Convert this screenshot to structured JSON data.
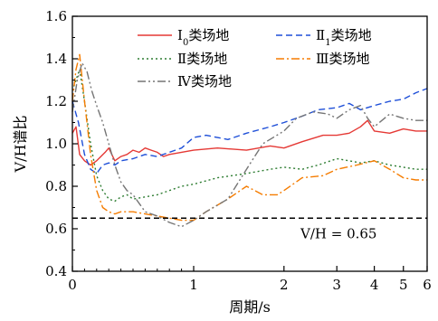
{
  "chart_data": {
    "type": "line",
    "xlabel": "周期/s",
    "ylabel": "V/H谱比",
    "xscale": "piecewise: linear 0-1, log 1-6",
    "xlim": [
      0,
      6
    ],
    "ylim": [
      0.4,
      1.6
    ],
    "x_ticks": [
      {
        "v": 0,
        "label": "0"
      },
      {
        "v": 1,
        "label": "1"
      },
      {
        "v": 2,
        "label": "2"
      },
      {
        "v": 3,
        "label": "3"
      },
      {
        "v": 4,
        "label": "4"
      },
      {
        "v": 5,
        "label": "5"
      },
      {
        "v": 6,
        "label": "6"
      }
    ],
    "y_ticks": [
      {
        "v": 0.4,
        "label": "0.4"
      },
      {
        "v": 0.6,
        "label": "0.6"
      },
      {
        "v": 0.8,
        "label": "0.8"
      },
      {
        "v": 1.0,
        "label": "1.0"
      },
      {
        "v": 1.2,
        "label": "1.2"
      },
      {
        "v": 1.4,
        "label": "1.4"
      },
      {
        "v": 1.6,
        "label": "1.6"
      }
    ],
    "reference_line": {
      "y": 0.65,
      "label": "V/H = 0.65",
      "color": "#000000"
    },
    "legend_position": "top",
    "series": [
      {
        "name": "Ⅰ0类场地",
        "legend_main": "Ⅰ",
        "legend_sub": "0",
        "legend_rest": "类场地",
        "color": "#e53935",
        "dash": "",
        "points": [
          [
            0.0,
            1.05
          ],
          [
            0.03,
            1.08
          ],
          [
            0.06,
            0.95
          ],
          [
            0.1,
            0.92
          ],
          [
            0.15,
            0.9
          ],
          [
            0.2,
            0.92
          ],
          [
            0.27,
            0.96
          ],
          [
            0.3,
            0.98
          ],
          [
            0.35,
            0.92
          ],
          [
            0.4,
            0.94
          ],
          [
            0.45,
            0.95
          ],
          [
            0.5,
            0.97
          ],
          [
            0.55,
            0.96
          ],
          [
            0.6,
            0.98
          ],
          [
            0.65,
            0.97
          ],
          [
            0.7,
            0.96
          ],
          [
            0.75,
            0.94
          ],
          [
            0.8,
            0.95
          ],
          [
            0.9,
            0.96
          ],
          [
            1.0,
            0.97
          ],
          [
            1.2,
            0.98
          ],
          [
            1.5,
            0.97
          ],
          [
            1.8,
            0.99
          ],
          [
            2.0,
            0.98
          ],
          [
            2.3,
            1.01
          ],
          [
            2.7,
            1.04
          ],
          [
            3.0,
            1.04
          ],
          [
            3.3,
            1.05
          ],
          [
            3.6,
            1.08
          ],
          [
            3.8,
            1.11
          ],
          [
            4.0,
            1.06
          ],
          [
            4.5,
            1.05
          ],
          [
            5.0,
            1.07
          ],
          [
            5.5,
            1.06
          ],
          [
            6.0,
            1.06
          ]
        ]
      },
      {
        "name": "Ⅱ1类场地",
        "legend_main": "Ⅱ",
        "legend_sub": "1",
        "legend_rest": "类场地",
        "color": "#1e4fd8",
        "dash": "7,4",
        "points": [
          [
            0.0,
            1.2
          ],
          [
            0.05,
            1.1
          ],
          [
            0.1,
            0.95
          ],
          [
            0.15,
            0.88
          ],
          [
            0.2,
            0.86
          ],
          [
            0.25,
            0.9
          ],
          [
            0.3,
            0.91
          ],
          [
            0.35,
            0.9
          ],
          [
            0.4,
            0.92
          ],
          [
            0.5,
            0.93
          ],
          [
            0.6,
            0.95
          ],
          [
            0.7,
            0.94
          ],
          [
            0.8,
            0.96
          ],
          [
            0.9,
            0.98
          ],
          [
            1.0,
            1.03
          ],
          [
            1.1,
            1.04
          ],
          [
            1.3,
            1.02
          ],
          [
            1.5,
            1.05
          ],
          [
            1.8,
            1.08
          ],
          [
            2.0,
            1.1
          ],
          [
            2.3,
            1.13
          ],
          [
            2.6,
            1.16
          ],
          [
            3.0,
            1.17
          ],
          [
            3.3,
            1.19
          ],
          [
            3.6,
            1.16
          ],
          [
            4.0,
            1.18
          ],
          [
            4.5,
            1.2
          ],
          [
            5.0,
            1.21
          ],
          [
            5.5,
            1.24
          ],
          [
            6.0,
            1.26
          ]
        ]
      },
      {
        "name": "Ⅱ类场地",
        "legend_main": "Ⅱ",
        "legend_sub": "",
        "legend_rest": "类场地",
        "color": "#2e7d32",
        "dash": "2,3",
        "points": [
          [
            0.0,
            1.25
          ],
          [
            0.03,
            1.3
          ],
          [
            0.06,
            1.35
          ],
          [
            0.1,
            1.2
          ],
          [
            0.15,
            1.0
          ],
          [
            0.2,
            0.85
          ],
          [
            0.25,
            0.78
          ],
          [
            0.3,
            0.74
          ],
          [
            0.35,
            0.73
          ],
          [
            0.4,
            0.75
          ],
          [
            0.45,
            0.76
          ],
          [
            0.5,
            0.74
          ],
          [
            0.6,
            0.75
          ],
          [
            0.7,
            0.76
          ],
          [
            0.8,
            0.78
          ],
          [
            0.9,
            0.8
          ],
          [
            1.0,
            0.81
          ],
          [
            1.2,
            0.84
          ],
          [
            1.5,
            0.86
          ],
          [
            1.8,
            0.88
          ],
          [
            2.0,
            0.89
          ],
          [
            2.3,
            0.88
          ],
          [
            2.6,
            0.9
          ],
          [
            3.0,
            0.93
          ],
          [
            3.3,
            0.92
          ],
          [
            3.6,
            0.91
          ],
          [
            4.0,
            0.92
          ],
          [
            4.5,
            0.9
          ],
          [
            5.0,
            0.89
          ],
          [
            5.5,
            0.88
          ],
          [
            6.0,
            0.88
          ]
        ]
      },
      {
        "name": "Ⅲ类场地",
        "legend_main": "Ⅲ",
        "legend_sub": "",
        "legend_rest": "类场地",
        "color": "#f57c00",
        "dash": "9,3,2,3",
        "points": [
          [
            0.0,
            1.2
          ],
          [
            0.03,
            1.35
          ],
          [
            0.06,
            1.42
          ],
          [
            0.1,
            1.2
          ],
          [
            0.15,
            0.95
          ],
          [
            0.2,
            0.78
          ],
          [
            0.25,
            0.7
          ],
          [
            0.3,
            0.68
          ],
          [
            0.35,
            0.67
          ],
          [
            0.4,
            0.68
          ],
          [
            0.5,
            0.68
          ],
          [
            0.6,
            0.67
          ],
          [
            0.7,
            0.66
          ],
          [
            0.8,
            0.65
          ],
          [
            0.9,
            0.64
          ],
          [
            1.0,
            0.64
          ],
          [
            1.1,
            0.68
          ],
          [
            1.3,
            0.74
          ],
          [
            1.5,
            0.8
          ],
          [
            1.7,
            0.76
          ],
          [
            1.9,
            0.76
          ],
          [
            2.0,
            0.78
          ],
          [
            2.3,
            0.84
          ],
          [
            2.7,
            0.85
          ],
          [
            3.0,
            0.88
          ],
          [
            3.5,
            0.9
          ],
          [
            4.0,
            0.92
          ],
          [
            4.5,
            0.88
          ],
          [
            5.0,
            0.84
          ],
          [
            5.5,
            0.83
          ],
          [
            6.0,
            0.83
          ]
        ]
      },
      {
        "name": "Ⅳ类场地",
        "legend_main": "Ⅳ",
        "legend_sub": "",
        "legend_rest": "类场地",
        "color": "#757575",
        "dash": "9,3,2,3,2,3",
        "points": [
          [
            0.0,
            1.15
          ],
          [
            0.04,
            1.3
          ],
          [
            0.08,
            1.38
          ],
          [
            0.12,
            1.34
          ],
          [
            0.16,
            1.25
          ],
          [
            0.2,
            1.18
          ],
          [
            0.25,
            1.1
          ],
          [
            0.3,
            1.0
          ],
          [
            0.35,
            0.9
          ],
          [
            0.4,
            0.82
          ],
          [
            0.45,
            0.78
          ],
          [
            0.5,
            0.76
          ],
          [
            0.55,
            0.72
          ],
          [
            0.6,
            0.68
          ],
          [
            0.7,
            0.66
          ],
          [
            0.8,
            0.63
          ],
          [
            0.9,
            0.61
          ],
          [
            1.0,
            0.64
          ],
          [
            1.1,
            0.68
          ],
          [
            1.3,
            0.74
          ],
          [
            1.5,
            0.88
          ],
          [
            1.7,
            1.0
          ],
          [
            2.0,
            1.06
          ],
          [
            2.2,
            1.12
          ],
          [
            2.5,
            1.15
          ],
          [
            2.8,
            1.14
          ],
          [
            3.0,
            1.12
          ],
          [
            3.3,
            1.16
          ],
          [
            3.6,
            1.18
          ],
          [
            3.8,
            1.12
          ],
          [
            4.0,
            1.08
          ],
          [
            4.5,
            1.14
          ],
          [
            5.0,
            1.12
          ],
          [
            5.5,
            1.11
          ],
          [
            6.0,
            1.11
          ]
        ]
      }
    ]
  }
}
